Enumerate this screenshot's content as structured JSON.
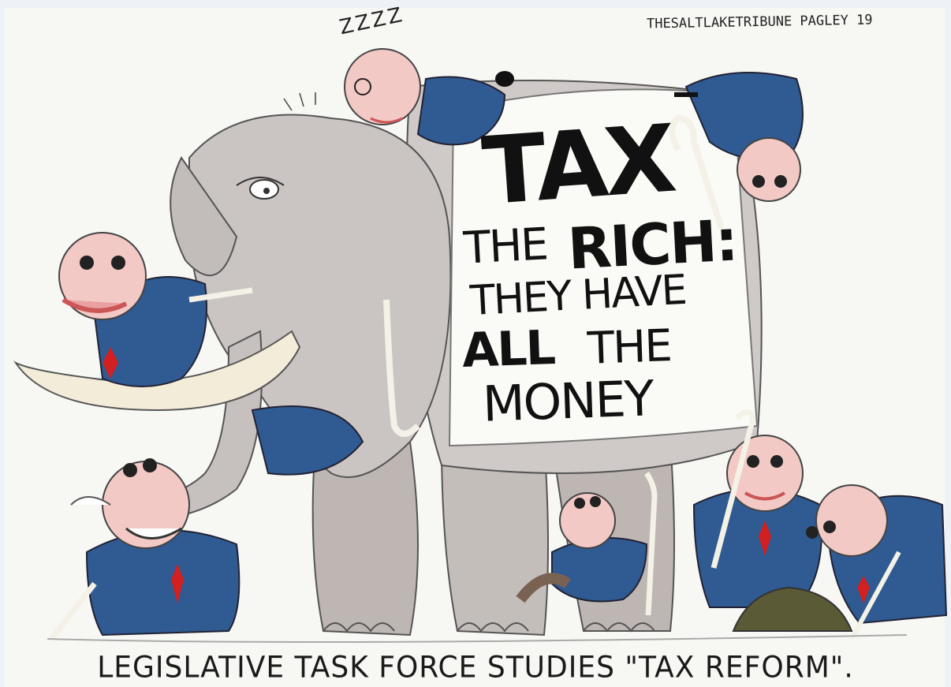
{
  "cartoon": {
    "credit": "THESALTLAKETRIBUNE PAGLEY 19",
    "sleep_sound": "ZZZZ",
    "sign": {
      "line1": "TAX",
      "line2a": "THE",
      "line2b": "RICH:",
      "line3": "THEY HAVE",
      "line4a": "ALL",
      "line4b": "THE",
      "line5": "MONEY"
    },
    "caption": "LEGISLATIVE TASK FORCE STUDIES \"TAX REFORM\"."
  },
  "colors": {
    "suit": "#2f5a92",
    "elephant": "#c9c7c6",
    "skin": "#f2c9c4",
    "tie": "#d22020",
    "cane": "#f4f1e6",
    "money_pile": "#5b5a36"
  }
}
